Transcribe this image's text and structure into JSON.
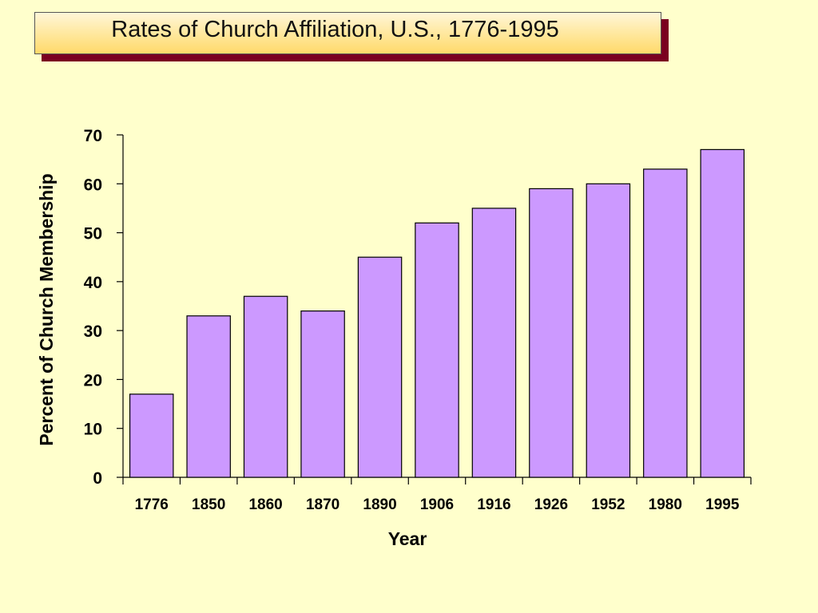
{
  "chart_data": {
    "type": "bar",
    "title": "Rates of Church Affiliation, U.S., 1776-1995",
    "xlabel": "Year",
    "ylabel": "Percent of Church Membership",
    "categories": [
      "1776",
      "1850",
      "1860",
      "1870",
      "1890",
      "1906",
      "1916",
      "1926",
      "1952",
      "1980",
      "1995"
    ],
    "values": [
      17,
      33,
      37,
      34,
      45,
      52,
      55,
      59,
      60,
      63,
      67
    ],
    "ylim": [
      0,
      70
    ],
    "yticks": [
      0,
      10,
      20,
      30,
      40,
      50,
      60,
      70
    ],
    "grid": false,
    "legend": "none",
    "colors": {
      "bar_fill": "#CC99FF",
      "bar_stroke": "#000000",
      "background": "#FFFFCC",
      "title_shadow": "#7A0020"
    }
  }
}
